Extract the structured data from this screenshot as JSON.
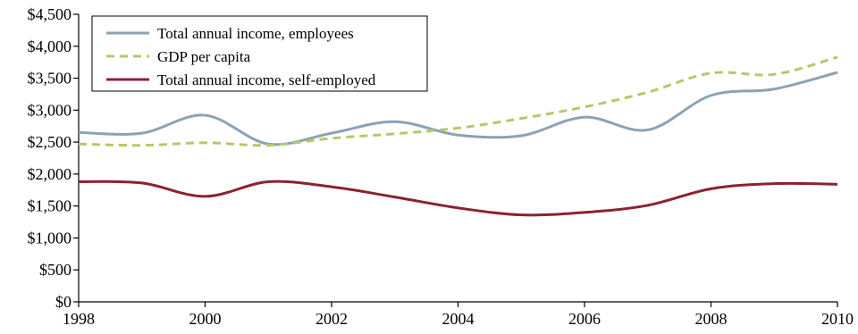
{
  "chart_data": {
    "type": "line",
    "title": "",
    "xlabel": "",
    "ylabel": "",
    "xlim": [
      1998,
      2010
    ],
    "ylim": [
      0,
      4500
    ],
    "x_ticks": [
      1998,
      2000,
      2002,
      2004,
      2006,
      2008,
      2010
    ],
    "y_ticks": [
      0,
      500,
      1000,
      1500,
      2000,
      2500,
      3000,
      3500,
      4000,
      4500
    ],
    "x_tick_labels": [
      "1998",
      "2000",
      "2002",
      "2004",
      "2006",
      "2008",
      "2010"
    ],
    "y_tick_labels": [
      "$0",
      "$500",
      "$1,000",
      "$1,500",
      "$2,000",
      "$2,500",
      "$3,000",
      "$3,500",
      "$4,000",
      "$4,500"
    ],
    "grid": false,
    "legend_position": "top-left",
    "x": [
      1998,
      1999,
      2000,
      2001,
      2002,
      2003,
      2004,
      2005,
      2006,
      2007,
      2008,
      2009,
      2010
    ],
    "series": [
      {
        "name": "Total annual income, employees",
        "color": "#8ba3b4",
        "dash": "solid",
        "values": [
          2650,
          2640,
          2920,
          2470,
          2640,
          2820,
          2610,
          2600,
          2890,
          2690,
          3230,
          3330,
          3590
        ]
      },
      {
        "name": "GDP per capita",
        "color": "#b5c96a",
        "dash": "dashed",
        "values": [
          2470,
          2450,
          2490,
          2450,
          2560,
          2630,
          2720,
          2870,
          3050,
          3280,
          3580,
          3560,
          3830
        ]
      },
      {
        "name": "Total annual income, self-employed",
        "color": "#8b2230",
        "dash": "solid",
        "values": [
          1880,
          1860,
          1650,
          1880,
          1800,
          1640,
          1470,
          1360,
          1400,
          1510,
          1770,
          1850,
          1840
        ]
      }
    ]
  }
}
